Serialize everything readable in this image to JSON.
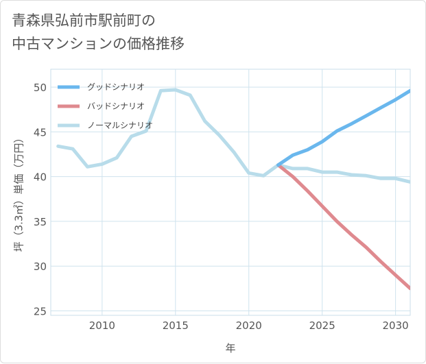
{
  "title": {
    "line1": "青森県弘前市駅前町の",
    "line2": "中古マンションの価格推移"
  },
  "chart_data": {
    "type": "line",
    "xlabel": "年",
    "ylabel": "坪（3.3㎡）単価（万円）",
    "xlim": [
      2006.5,
      2031
    ],
    "ylim": [
      24.5,
      52
    ],
    "xticks": [
      2010,
      2015,
      2020,
      2025,
      2030
    ],
    "yticks": [
      25,
      30,
      35,
      40,
      45,
      50
    ],
    "grid": true,
    "legend_position": "top-left",
    "series": [
      {
        "name": "グッドシナリオ",
        "color": "#6ab7ed",
        "points": [
          [
            2022,
            41.3
          ],
          [
            2023,
            42.4
          ],
          [
            2024,
            43.0
          ],
          [
            2025,
            43.9
          ],
          [
            2026,
            45.1
          ],
          [
            2027,
            45.9
          ],
          [
            2028,
            46.8
          ],
          [
            2029,
            47.7
          ],
          [
            2030,
            48.6
          ],
          [
            2031,
            49.6
          ]
        ]
      },
      {
        "name": "バッドシナリオ",
        "color": "#df8a8f",
        "points": [
          [
            2022,
            41.3
          ],
          [
            2023,
            40.0
          ],
          [
            2024,
            38.4
          ],
          [
            2025,
            36.7
          ],
          [
            2026,
            35.0
          ],
          [
            2027,
            33.5
          ],
          [
            2028,
            32.1
          ],
          [
            2029,
            30.5
          ],
          [
            2030,
            29.0
          ],
          [
            2031,
            27.5
          ]
        ]
      },
      {
        "name": "ノーマルシナリオ",
        "color": "#b8dcea",
        "points": [
          [
            2007,
            43.4
          ],
          [
            2008,
            43.1
          ],
          [
            2009,
            41.1
          ],
          [
            2010,
            41.4
          ],
          [
            2011,
            42.1
          ],
          [
            2012,
            44.5
          ],
          [
            2013,
            45.1
          ],
          [
            2014,
            49.6
          ],
          [
            2015,
            49.7
          ],
          [
            2016,
            49.1
          ],
          [
            2017,
            46.2
          ],
          [
            2018,
            44.6
          ],
          [
            2019,
            42.7
          ],
          [
            2020,
            40.4
          ],
          [
            2021,
            40.1
          ],
          [
            2022,
            41.3
          ],
          [
            2023,
            40.9
          ],
          [
            2024,
            40.9
          ],
          [
            2025,
            40.5
          ],
          [
            2026,
            40.5
          ],
          [
            2027,
            40.2
          ],
          [
            2028,
            40.1
          ],
          [
            2029,
            39.8
          ],
          [
            2030,
            39.8
          ],
          [
            2031,
            39.4
          ]
        ]
      }
    ]
  }
}
